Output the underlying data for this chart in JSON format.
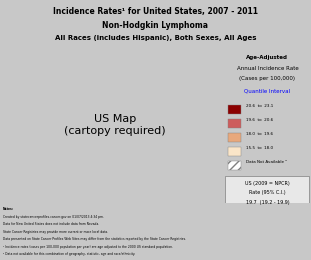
{
  "title1": "Incidence Rates¹ for United States, 2007 - 2011",
  "title2": "Non-Hodgkin Lymphoma",
  "title3": "All Races (includes Hispanic), Both Sexes, All Ages",
  "legend_title": "Age-Adjusted",
  "legend_subtitle": "Annual Incidence Rate",
  "legend_units": "(Cases per 100,000)",
  "legend_link": "Quantile Interval",
  "legend_items": [
    {
      "label": "20.6  to  23.1",
      "color": "#8B0000"
    },
    {
      "label": "19.6  to  20.6",
      "color": "#CD5C5C"
    },
    {
      "label": "18.0  to  19.6",
      "color": "#E8A87C"
    },
    {
      "label": "15.5  to  18.0",
      "color": "#FAE5C8"
    }
  ],
  "legend_dna": "Data Not Available ²",
  "legend_us": "US (2009 = NPCR)",
  "legend_rate": "Rate (95% C.I.)",
  "legend_ci": "19.7  (19.2 - 19.9)",
  "bg_color": "#D3D3D3",
  "panel_color": "#E8E8E8",
  "state_colors": {
    "AL": "#FAE5C8",
    "AK": "#FAE5C8",
    "AZ": "#FAE5C8",
    "AR": "#E8A87C",
    "CA": "hatch",
    "CO": "#FAE5C8",
    "CT": "#8B0000",
    "DE": "#CD5C5C",
    "FL": "#FAE5C8",
    "GA": "#E8A87C",
    "HI": "#FAE5C8",
    "ID": "#E8A87C",
    "IL": "#E8A87C",
    "IN": "#E8A87C",
    "IA": "#8B0000",
    "KS": "#E8A87C",
    "KY": "#E8A87C",
    "LA": "#CD5C5C",
    "ME": "#8B0000",
    "MD": "#E8A87C",
    "MA": "#CD5C5C",
    "MI": "#CD5C5C",
    "MN": "#8B0000",
    "MS": "#FAE5C8",
    "MO": "#E8A87C",
    "MT": "#FAE5C8",
    "NE": "#E8A87C",
    "NV": "#FAE5C8",
    "NH": "#CD5C5C",
    "NJ": "#CD5C5C",
    "NM": "#FAE5C8",
    "NY": "#8B0000",
    "NC": "#FAE5C8",
    "ND": "#E8A87C",
    "OH": "#E8A87C",
    "OK": "#E8A87C",
    "OR": "#CD5C5C",
    "PA": "#CD5C5C",
    "RI": "#8B0000",
    "SC": "#FAE5C8",
    "SD": "#E8A87C",
    "TN": "#E8A87C",
    "TX": "#E8A87C",
    "UT": "#FAE5C8",
    "VT": "#CD5C5C",
    "VA": "#E8A87C",
    "WA": "#8B0000",
    "WV": "#E8A87C",
    "WI": "#CD5C5C",
    "WY": "#FAE5C8"
  },
  "notes_text": "Notes:\nCreated by statecancerprofiles.cancer.gov on 01/07/2013 4:34 pm.\nData for New United States does not include data from Nevada.\nState Cancer Registries may provide more current or more local data.\nData presented on State Cancer Profiles Web Sites may differ from the statistics reported by the State Cancer Registries.\n¹ Incidence rates (cases per 100,000 population per year) are age adjusted to the 2000 US standard population (19 age groups: <1, 1-4, 5-9, ..., 85+).\n² Data not available for this combination of geography, statistic, age and race/ethnicity."
}
